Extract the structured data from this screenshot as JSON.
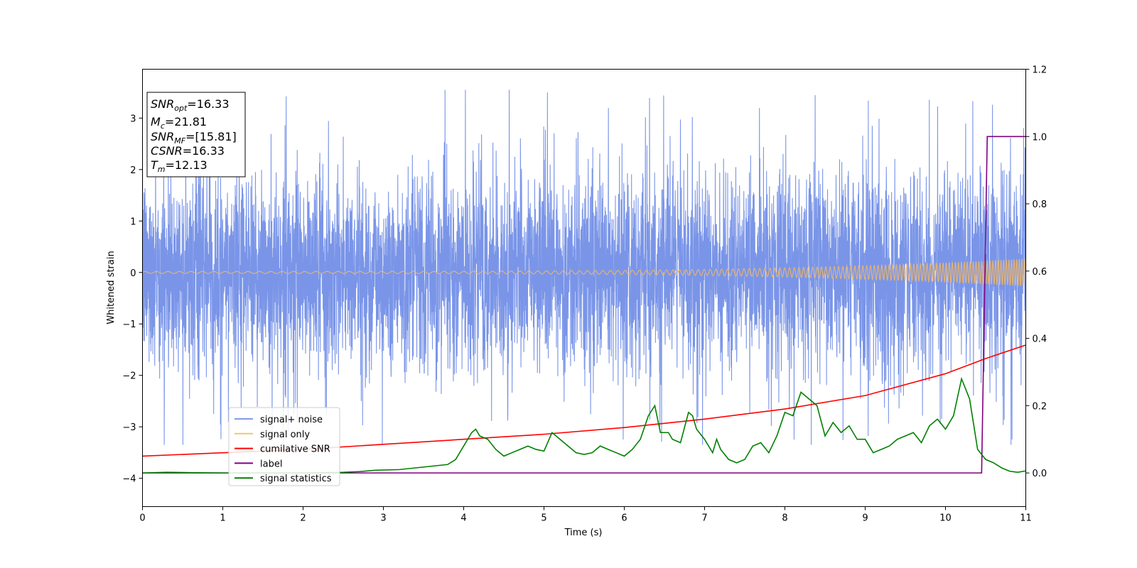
{
  "chart_data": {
    "type": "line",
    "xlabel": "Time (s)",
    "ylabel": "Whitened strain",
    "xlim": [
      0,
      11
    ],
    "ylim": [
      -4.55,
      3.95
    ],
    "y2lim": [
      -0.1,
      1.2
    ],
    "x_ticks": [
      "0",
      "1",
      "2",
      "3",
      "4",
      "5",
      "6",
      "7",
      "8",
      "9",
      "10",
      "11"
    ],
    "y_ticks": [
      "3",
      "2",
      "1",
      "0",
      "−1",
      "−2",
      "−3",
      "−4"
    ],
    "y_tick_values": [
      3,
      2,
      1,
      0,
      -1,
      -2,
      -3,
      -4
    ],
    "y2_ticks": [
      "1.2",
      "1.0",
      "0.8",
      "0.6",
      "0.4",
      "0.2",
      "0.0"
    ],
    "y2_tick_values": [
      1.2,
      1.0,
      0.8,
      0.6,
      0.4,
      0.2,
      0.0
    ],
    "annotations": [
      {
        "base": "SNR",
        "sub": "opt",
        "value": "=16.33"
      },
      {
        "base": "M",
        "sub": "c",
        "value": "=21.81"
      },
      {
        "base": "SNR",
        "sub": "MF",
        "value": "=[15.81]"
      },
      {
        "base": "CSNR",
        "sub": "",
        "value": "=16.33"
      },
      {
        "base": "T",
        "sub": "m",
        "value": "=12.13"
      }
    ],
    "legend": {
      "position": "lower-left",
      "entries": [
        "signal+ noise",
        "signal only",
        "cumilative SNR",
        "label",
        "signal statistics"
      ]
    },
    "series": [
      {
        "name": "signal+ noise",
        "axis": "left",
        "color": "#6b8ae6",
        "kind": "noise",
        "envelope": {
          "typical_high": 2.0,
          "typical_low": -2.0,
          "max": 3.55,
          "min": -3.35
        }
      },
      {
        "name": "signal only",
        "axis": "left",
        "color": "#f5b760",
        "kind": "chirp",
        "amplitude_start": 0.02,
        "amplitude_end": 0.27,
        "freq_start_hz": 7,
        "freq_end_hz": 32
      },
      {
        "name": "cumilative SNR",
        "axis": "right",
        "color": "#ff0000",
        "x": [
          0,
          1,
          2,
          3,
          4,
          5,
          6,
          7,
          8,
          9,
          10,
          10.5,
          11
        ],
        "y": [
          0.05,
          0.06,
          0.07,
          0.085,
          0.1,
          0.115,
          0.135,
          0.16,
          0.19,
          0.23,
          0.295,
          0.34,
          0.38
        ]
      },
      {
        "name": "label",
        "axis": "right",
        "color": "#800080",
        "x": [
          0,
          10.45,
          10.52,
          11
        ],
        "y": [
          0.0,
          0.0,
          1.0,
          1.0
        ]
      },
      {
        "name": "signal statistics",
        "axis": "right",
        "color": "#008000",
        "x": [
          0,
          0.3,
          0.6,
          1,
          1.5,
          2,
          2.5,
          2.7,
          2.9,
          3.2,
          3.4,
          3.6,
          3.8,
          3.9,
          4.0,
          4.1,
          4.15,
          4.2,
          4.3,
          4.4,
          4.5,
          4.6,
          4.7,
          4.8,
          4.9,
          5.0,
          5.1,
          5.2,
          5.3,
          5.4,
          5.5,
          5.6,
          5.7,
          5.8,
          5.9,
          6.0,
          6.1,
          6.2,
          6.3,
          6.38,
          6.45,
          6.55,
          6.6,
          6.7,
          6.8,
          6.85,
          6.9,
          7.0,
          7.1,
          7.15,
          7.2,
          7.3,
          7.4,
          7.5,
          7.6,
          7.7,
          7.8,
          7.9,
          8.0,
          8.1,
          8.2,
          8.3,
          8.4,
          8.5,
          8.6,
          8.7,
          8.8,
          8.9,
          9.0,
          9.1,
          9.2,
          9.3,
          9.4,
          9.5,
          9.6,
          9.7,
          9.8,
          9.9,
          10.0,
          10.1,
          10.2,
          10.3,
          10.4,
          10.5,
          10.6,
          10.7,
          10.8,
          10.9,
          11.0
        ],
        "y": [
          0.0,
          0.002,
          0.001,
          0.0,
          0.0,
          0.0,
          0.002,
          0.004,
          0.008,
          0.01,
          0.015,
          0.02,
          0.025,
          0.04,
          0.08,
          0.12,
          0.13,
          0.11,
          0.1,
          0.07,
          0.05,
          0.06,
          0.07,
          0.08,
          0.07,
          0.065,
          0.12,
          0.1,
          0.08,
          0.06,
          0.055,
          0.06,
          0.08,
          0.07,
          0.06,
          0.05,
          0.07,
          0.1,
          0.17,
          0.2,
          0.12,
          0.12,
          0.1,
          0.09,
          0.18,
          0.17,
          0.13,
          0.1,
          0.06,
          0.1,
          0.07,
          0.04,
          0.03,
          0.04,
          0.08,
          0.09,
          0.06,
          0.11,
          0.18,
          0.17,
          0.24,
          0.22,
          0.2,
          0.11,
          0.15,
          0.12,
          0.14,
          0.1,
          0.1,
          0.06,
          0.07,
          0.08,
          0.1,
          0.11,
          0.12,
          0.09,
          0.14,
          0.16,
          0.13,
          0.17,
          0.28,
          0.22,
          0.07,
          0.04,
          0.03,
          0.015,
          0.005,
          0.002,
          0.006
        ]
      }
    ]
  }
}
